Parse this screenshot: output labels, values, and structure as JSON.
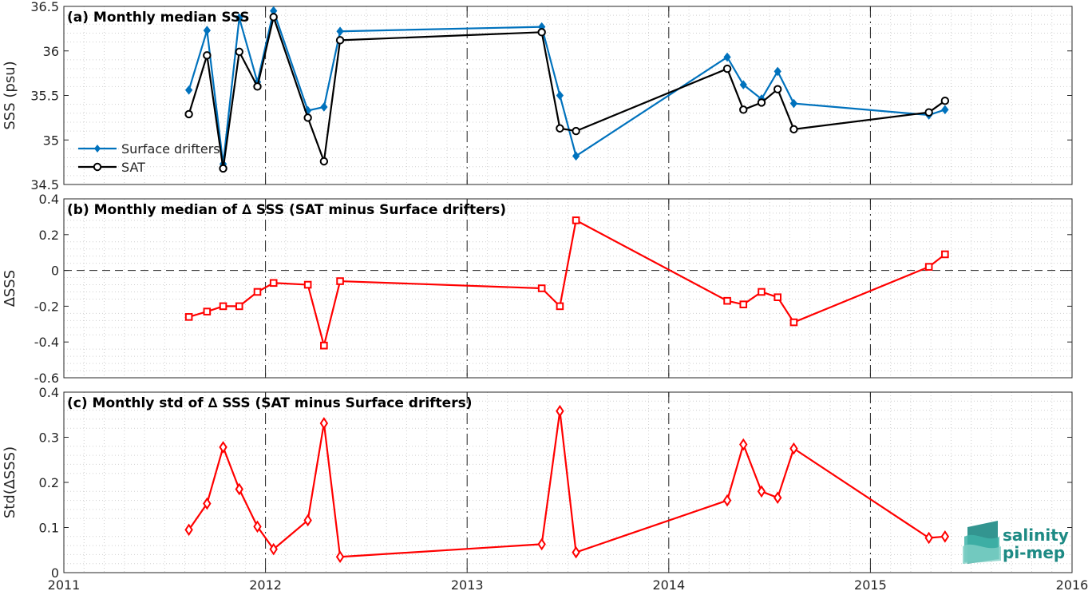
{
  "chart_data": [
    {
      "type": "line",
      "title": "(a) Monthly median SSS",
      "ylabel": "SSS (psu)",
      "xlim": [
        2011,
        2016
      ],
      "ylim": [
        34.5,
        36.5
      ],
      "yticks": [
        34.5,
        35,
        35.5,
        36,
        36.5
      ],
      "ytick_labels": [
        "34.5",
        "35",
        "35.5",
        "36",
        "36.5"
      ],
      "grid": "minor dotted",
      "legend_position": "lower-left",
      "series": [
        {
          "name": "Surface drifters",
          "color": "#0072bd",
          "marker": "diamond",
          "x": [
            2011.62,
            2011.71,
            2011.79,
            2011.87,
            2011.96,
            2012.04,
            2012.21,
            2012.29,
            2012.37,
            2013.37,
            2013.46,
            2013.54,
            2014.29,
            2014.37,
            2014.46,
            2014.54,
            2014.62,
            2015.29,
            2015.37
          ],
          "y": [
            35.56,
            36.23,
            34.73,
            36.37,
            35.65,
            36.45,
            35.33,
            35.37,
            36.22,
            36.27,
            35.5,
            34.82,
            35.93,
            35.62,
            35.46,
            35.77,
            35.41,
            35.28,
            35.34
          ]
        },
        {
          "name": "SAT",
          "color": "#000000",
          "marker": "circle",
          "x": [
            2011.62,
            2011.71,
            2011.79,
            2011.87,
            2011.96,
            2012.04,
            2012.21,
            2012.29,
            2012.37,
            2013.37,
            2013.46,
            2013.54,
            2014.29,
            2014.37,
            2014.46,
            2014.54,
            2014.62,
            2015.29,
            2015.37
          ],
          "y": [
            35.29,
            35.95,
            34.68,
            35.99,
            35.6,
            36.38,
            35.25,
            34.76,
            36.12,
            36.21,
            35.13,
            35.1,
            35.8,
            35.34,
            35.42,
            35.57,
            35.12,
            35.31,
            35.44
          ]
        }
      ]
    },
    {
      "type": "line",
      "title": "(b) Monthly median of ∆ SSS (SAT minus Surface drifters)",
      "ylabel": "∆SSS",
      "xlim": [
        2011,
        2016
      ],
      "ylim": [
        -0.6,
        0.4
      ],
      "yticks": [
        -0.6,
        -0.4,
        -0.2,
        0,
        0.2,
        0.4
      ],
      "ytick_labels": [
        "-0.6",
        "-0.4",
        "-0.2",
        "0",
        "0.2",
        "0.4"
      ],
      "zero_line": "dashed",
      "grid": "minor dotted",
      "series": [
        {
          "color": "#ff0000",
          "marker": "square",
          "x": [
            2011.62,
            2011.71,
            2011.79,
            2011.87,
            2011.96,
            2012.04,
            2012.21,
            2012.29,
            2012.37,
            2013.37,
            2013.46,
            2013.54,
            2014.29,
            2014.37,
            2014.46,
            2014.54,
            2014.62,
            2015.29,
            2015.37
          ],
          "y": [
            -0.26,
            -0.23,
            -0.2,
            -0.2,
            -0.12,
            -0.07,
            -0.08,
            -0.42,
            -0.06,
            -0.1,
            -0.2,
            0.28,
            -0.17,
            -0.19,
            -0.12,
            -0.15,
            -0.29,
            0.02,
            0.09
          ]
        }
      ]
    },
    {
      "type": "line",
      "title": "(c) Monthly std of ∆ SSS (SAT minus Surface drifters)",
      "ylabel": "Std(∆SSS)",
      "xlim": [
        2011,
        2016
      ],
      "ylim": [
        0,
        0.4
      ],
      "yticks": [
        0,
        0.1,
        0.2,
        0.3,
        0.4
      ],
      "ytick_labels": [
        "0",
        "0.1",
        "0.2",
        "0.3",
        "0.4"
      ],
      "grid": "minor dotted",
      "series": [
        {
          "color": "#ff0000",
          "marker": "diamond-open",
          "x": [
            2011.62,
            2011.71,
            2011.79,
            2011.87,
            2011.96,
            2012.04,
            2012.21,
            2012.29,
            2012.37,
            2013.37,
            2013.46,
            2013.54,
            2014.29,
            2014.37,
            2014.46,
            2014.54,
            2014.62,
            2015.29,
            2015.37
          ],
          "y": [
            0.095,
            0.153,
            0.278,
            0.185,
            0.102,
            0.052,
            0.116,
            0.331,
            0.035,
            0.063,
            0.358,
            0.045,
            0.16,
            0.284,
            0.18,
            0.166,
            0.275,
            0.077,
            0.08
          ]
        }
      ]
    }
  ],
  "xaxis": {
    "ticks": [
      2011,
      2012,
      2013,
      2014,
      2015,
      2016
    ],
    "tick_labels": [
      "2011",
      "2012",
      "2013",
      "2014",
      "2015",
      "2016"
    ],
    "year_lines": "dash-dot"
  },
  "logo": {
    "line1": "salinity",
    "line2": "pi-mep",
    "color": "#1d8a84"
  }
}
